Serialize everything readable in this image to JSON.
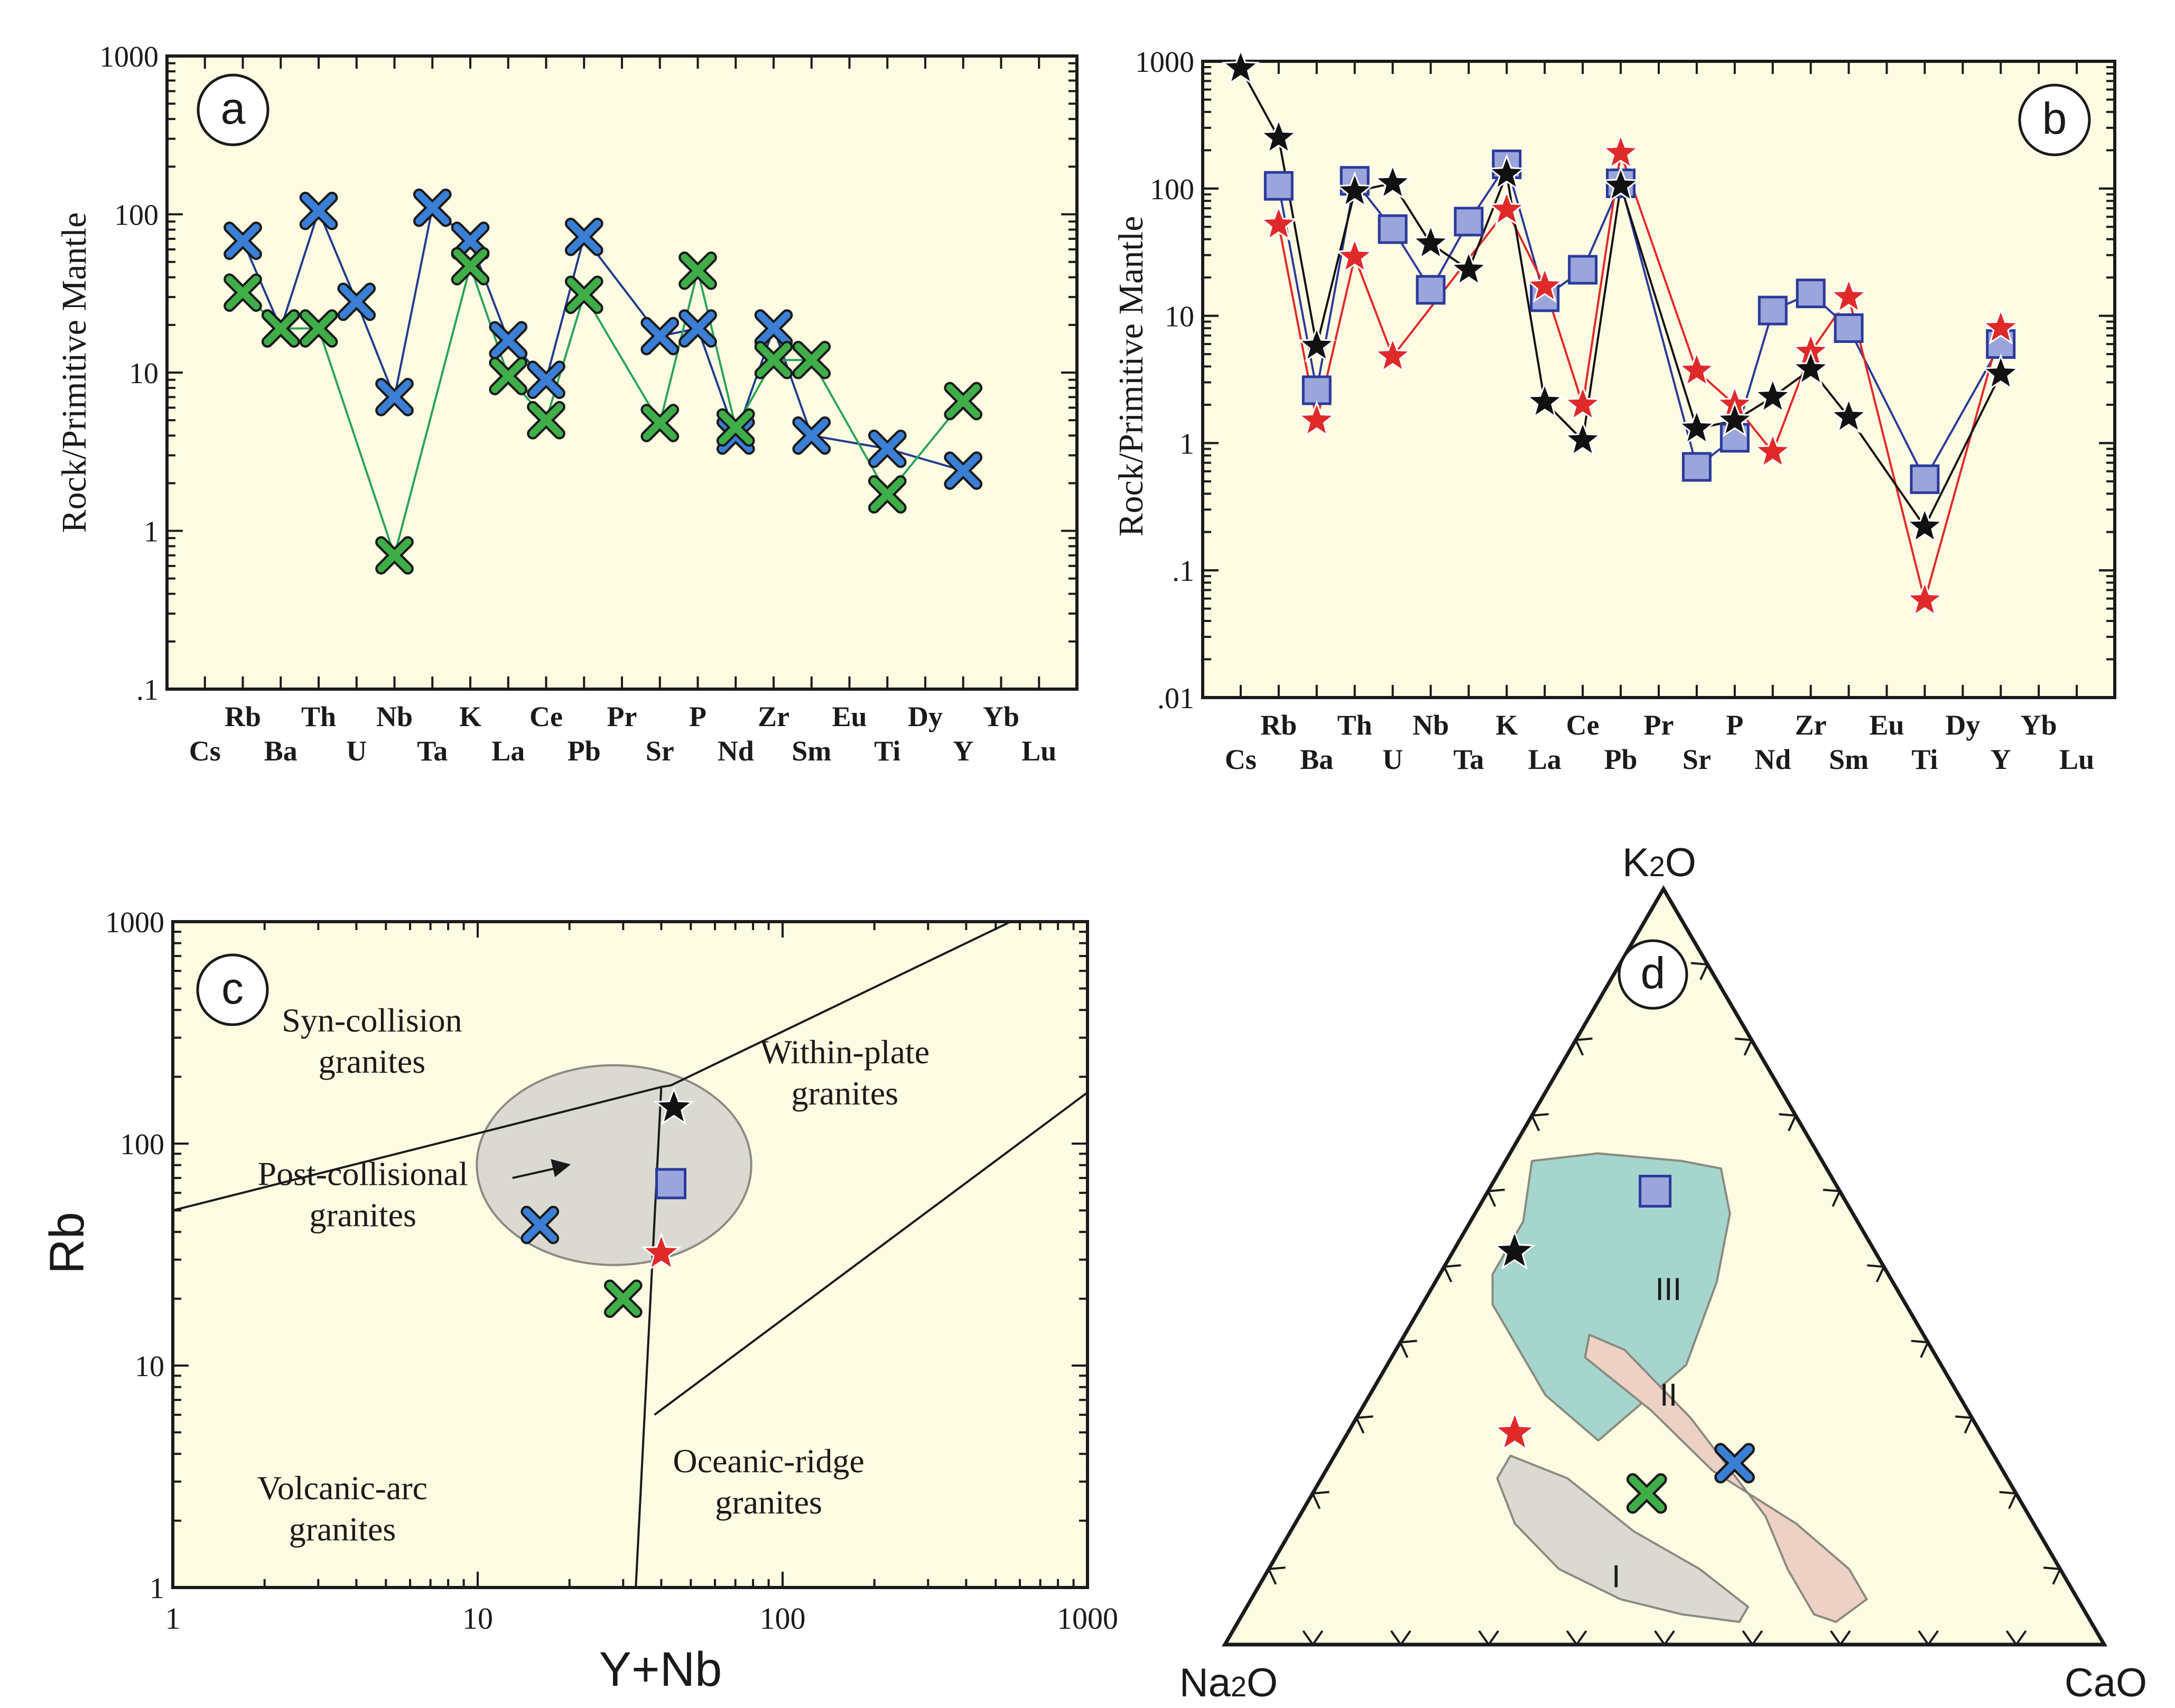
{
  "chart_data": [
    {
      "id": "a",
      "type": "line",
      "panel_label": "a",
      "ylabel": "Rock/Primitive Mantle",
      "yscale": "log",
      "ylim": [
        0.1,
        1000
      ],
      "y_ticks": [
        "1000",
        "100",
        "10",
        "1",
        ".1"
      ],
      "categories": [
        "Cs",
        "Rb",
        "Ba",
        "Th",
        "U",
        "Nb",
        "Ta",
        "K",
        "La",
        "Ce",
        "Pb",
        "Pr",
        "Sr",
        "P",
        "Nd",
        "Zr",
        "Sm",
        "Eu",
        "Ti",
        "Dy",
        "Y",
        "Yb",
        "Lu"
      ],
      "series": [
        {
          "name": "blue-cross",
          "color": "#3a7fd5",
          "line": "#1f3c8c",
          "marker": "cross",
          "points": [
            [
              "Rb",
              68
            ],
            [
              "Ba",
              19
            ],
            [
              "Th",
              105
            ],
            [
              "U",
              28
            ],
            [
              "Nb",
              7
            ],
            [
              "Ta",
              110
            ],
            [
              "K",
              68
            ],
            [
              "La",
              16
            ],
            [
              "Ce",
              9
            ],
            [
              "Pb",
              72
            ],
            [
              "Sr",
              17
            ],
            [
              "P",
              19
            ],
            [
              "Nd",
              4
            ],
            [
              "Zr",
              19
            ],
            [
              "Sm",
              4
            ],
            [
              "Ti",
              3.3
            ],
            [
              "Y",
              2.4
            ]
          ]
        },
        {
          "name": "green-cross",
          "color": "#3fae49",
          "line": "#2aa35a",
          "marker": "cross",
          "points": [
            [
              "Rb",
              32
            ],
            [
              "Ba",
              19
            ],
            [
              "Th",
              19
            ],
            [
              "Nb",
              0.7
            ],
            [
              "K",
              47
            ],
            [
              "La",
              9.5
            ],
            [
              "Ce",
              5
            ],
            [
              "Pb",
              31
            ],
            [
              "Sr",
              4.8
            ],
            [
              "P",
              44
            ],
            [
              "Nd",
              4.5
            ],
            [
              "Zr",
              12
            ],
            [
              "Sm",
              12
            ],
            [
              "Ti",
              1.7
            ],
            [
              "Y",
              6.6
            ]
          ]
        }
      ]
    },
    {
      "id": "b",
      "type": "line",
      "panel_label": "b",
      "ylabel": "Rock/Primitive Mantle",
      "yscale": "log",
      "ylim": [
        0.01,
        1000
      ],
      "y_ticks": [
        "1000",
        "100",
        "10",
        "1",
        ".1",
        ".01"
      ],
      "categories": [
        "Cs",
        "Rb",
        "Ba",
        "Th",
        "U",
        "Nb",
        "Ta",
        "K",
        "La",
        "Ce",
        "Pb",
        "Pr",
        "Sr",
        "P",
        "Nd",
        "Zr",
        "Sm",
        "Eu",
        "Ti",
        "Dy",
        "Y",
        "Yb",
        "Lu"
      ],
      "series": [
        {
          "name": "blue-square",
          "color": "#9aa5dc",
          "line": "#2b3a9a",
          "marker": "square",
          "points": [
            [
              "Rb",
              105
            ],
            [
              "Ba",
              2.6
            ],
            [
              "Th",
              115
            ],
            [
              "U",
              48
            ],
            [
              "Nb",
              16
            ],
            [
              "Ta",
              55
            ],
            [
              "K",
              155
            ],
            [
              "La",
              14
            ],
            [
              "Ce",
              23
            ],
            [
              "Pb",
              110
            ],
            [
              "Sr",
              0.65
            ],
            [
              "P",
              1.1
            ],
            [
              "Nd",
              11
            ],
            [
              "Zr",
              15
            ],
            [
              "Sm",
              8
            ],
            [
              "Ti",
              0.52
            ],
            [
              "Y",
              6
            ]
          ]
        },
        {
          "name": "red-star",
          "color": "#e02a2a",
          "line": "#e02a2a",
          "marker": "star",
          "points": [
            [
              "Rb",
              52
            ],
            [
              "Ba",
              1.5
            ],
            [
              "Th",
              29
            ],
            [
              "U",
              4.8
            ],
            [
              "K",
              68
            ],
            [
              "La",
              17
            ],
            [
              "Ce",
              2
            ],
            [
              "Pb",
              190
            ],
            [
              "Sr",
              3.7
            ],
            [
              "P",
              2
            ],
            [
              "Nd",
              0.85
            ],
            [
              "Zr",
              5.2
            ],
            [
              "Sm",
              14
            ],
            [
              "Ti",
              0.058
            ],
            [
              "Y",
              8
            ]
          ]
        },
        {
          "name": "black-star",
          "color": "#111111",
          "line": "#111111",
          "marker": "star",
          "points": [
            [
              "Cs",
              880
            ],
            [
              "Rb",
              250
            ],
            [
              "Ba",
              5.8
            ],
            [
              "Th",
              95
            ],
            [
              "U",
              110
            ],
            [
              "Nb",
              37
            ],
            [
              "Ta",
              23
            ],
            [
              "K",
              130
            ],
            [
              "La",
              2.1
            ],
            [
              "Ce",
              1.05
            ],
            [
              "Pb",
              105
            ],
            [
              "Sr",
              1.3
            ],
            [
              "P",
              1.5
            ],
            [
              "Nd",
              2.3
            ],
            [
              "Zr",
              3.8
            ],
            [
              "Sm",
              1.6
            ],
            [
              "Ti",
              0.22
            ],
            [
              "Y",
              3.5
            ]
          ]
        }
      ]
    },
    {
      "id": "c",
      "type": "scatter",
      "panel_label": "c",
      "xlabel": "Y+Nb",
      "ylabel": "Rb",
      "xscale": "log",
      "yscale": "log",
      "xlim": [
        1,
        1000
      ],
      "ylim": [
        1,
        1000
      ],
      "x_ticks": [
        "1",
        "10",
        "100",
        "1000"
      ],
      "y_ticks": [
        "1000",
        "100",
        "10",
        "1"
      ],
      "field_labels": [
        {
          "lines": [
            "Syn-collision",
            "granites"
          ],
          "at": [
            4.5,
            320
          ]
        },
        {
          "lines": [
            "Within-plate",
            "granites"
          ],
          "at": [
            160,
            230
          ]
        },
        {
          "lines": [
            "Post-collisional",
            "granites"
          ],
          "at": [
            4.2,
            65
          ]
        },
        {
          "lines": [
            "Volcanic-arc",
            "granites"
          ],
          "at": [
            3.6,
            2.5
          ]
        },
        {
          "lines": [
            "Oceanic-ridge",
            "granites"
          ],
          "at": [
            90,
            3.3
          ]
        }
      ],
      "boundaries": [
        [
          [
            1,
            50
          ],
          [
            40,
            180
          ],
          [
            43,
            183
          ],
          [
            560,
            1000
          ]
        ],
        [
          [
            40,
            180
          ],
          [
            33,
            1
          ]
        ],
        [
          [
            38,
            6
          ],
          [
            1000,
            170
          ]
        ]
      ],
      "post_collision_field": {
        "center": [
          28,
          80
        ],
        "radius_log_x": 0.45,
        "radius_log_y": 0.45
      },
      "points": [
        {
          "name": "black-star",
          "x": 44,
          "y": 145,
          "marker": "star",
          "color": "#111111"
        },
        {
          "name": "blue-square",
          "x": 43,
          "y": 66,
          "marker": "square",
          "color": "#9aa5dc"
        },
        {
          "name": "red-star",
          "x": 40,
          "y": 32,
          "marker": "star",
          "color": "#e02a2a"
        },
        {
          "name": "blue-cross",
          "x": 16,
          "y": 43,
          "marker": "cross",
          "color": "#3a7fd5"
        },
        {
          "name": "green-cross",
          "x": 30,
          "y": 20,
          "marker": "cross",
          "color": "#3fae49"
        }
      ]
    },
    {
      "id": "d",
      "type": "ternary",
      "panel_label": "d",
      "apices": {
        "top": "K2O",
        "left": "Na2O",
        "right": "CaO"
      },
      "apex_display": {
        "top": [
          "K",
          "2",
          "O"
        ],
        "left": [
          "Na",
          "2",
          "O"
        ],
        "right": [
          "CaO"
        ]
      },
      "fields": [
        {
          "label": "III",
          "color": "#a5d5cd",
          "label_at": [
            0.47,
            0.26,
            0.27
          ],
          "polygon": [
            [
              0.64,
              0.33,
              0.03
            ],
            [
              0.56,
              0.38,
              0.06
            ],
            [
              0.49,
              0.45,
              0.06
            ],
            [
              0.45,
              0.47,
              0.08
            ],
            [
              0.4,
              0.47,
              0.13
            ],
            [
              0.33,
              0.47,
              0.2
            ],
            [
              0.27,
              0.44,
              0.29
            ],
            [
              0.37,
              0.29,
              0.34
            ],
            [
              0.48,
              0.2,
              0.32
            ],
            [
              0.57,
              0.14,
              0.29
            ],
            [
              0.63,
              0.12,
              0.25
            ],
            [
              0.64,
              0.16,
              0.2
            ],
            [
              0.65,
              0.25,
              0.1
            ]
          ]
        },
        {
          "label": "II",
          "color": "#eed1c5",
          "label_at": [
            0.33,
            0.33,
            0.34
          ],
          "polygon": [
            [
              0.41,
              0.38,
              0.21
            ],
            [
              0.39,
              0.35,
              0.26
            ],
            [
              0.3,
              0.32,
              0.38
            ],
            [
              0.17,
              0.3,
              0.53
            ],
            [
              0.1,
              0.31,
              0.59
            ],
            [
              0.04,
              0.31,
              0.65
            ],
            [
              0.03,
              0.29,
              0.68
            ],
            [
              0.06,
              0.24,
              0.7
            ],
            [
              0.1,
              0.24,
              0.66
            ],
            [
              0.16,
              0.27,
              0.57
            ],
            [
              0.23,
              0.33,
              0.44
            ],
            [
              0.31,
              0.36,
              0.33
            ],
            [
              0.38,
              0.4,
              0.22
            ]
          ]
        },
        {
          "label": "I",
          "color": "#dadad2",
          "label_at": [
            0.09,
            0.51,
            0.4
          ],
          "polygon": [
            [
              0.25,
              0.55,
              0.2
            ],
            [
              0.22,
              0.5,
              0.28
            ],
            [
              0.15,
              0.46,
              0.39
            ],
            [
              0.1,
              0.41,
              0.49
            ],
            [
              0.05,
              0.38,
              0.57
            ],
            [
              0.03,
              0.4,
              0.57
            ],
            [
              0.04,
              0.46,
              0.5
            ],
            [
              0.06,
              0.52,
              0.42
            ],
            [
              0.1,
              0.57,
              0.33
            ],
            [
              0.16,
              0.59,
              0.25
            ],
            [
              0.22,
              0.58,
              0.2
            ]
          ]
        }
      ],
      "points": [
        {
          "name": "blue-square",
          "k": 0.6,
          "na": 0.21,
          "ca": 0.19,
          "marker": "square",
          "color": "#9aa5dc"
        },
        {
          "name": "black-star",
          "k": 0.52,
          "na": 0.41,
          "ca": 0.07,
          "marker": "star",
          "color": "#111111"
        },
        {
          "name": "red-star",
          "k": 0.28,
          "na": 0.53,
          "ca": 0.19,
          "marker": "star",
          "color": "#e02a2a"
        },
        {
          "name": "green-cross",
          "k": 0.2,
          "na": 0.42,
          "ca": 0.38,
          "marker": "cross",
          "color": "#3fae49"
        },
        {
          "name": "blue-cross",
          "k": 0.24,
          "na": 0.3,
          "ca": 0.46,
          "marker": "cross",
          "color": "#3a7fd5"
        }
      ]
    }
  ]
}
